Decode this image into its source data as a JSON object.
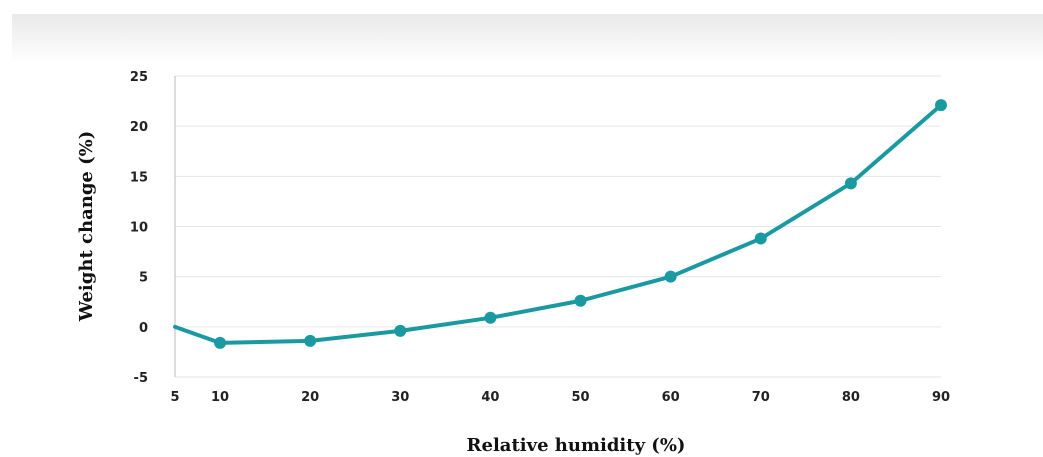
{
  "chart_data": {
    "type": "line",
    "title": "",
    "xlabel": "Relative humidity (%)",
    "ylabel": "Weight change (%)",
    "x_ticks": [
      "5",
      "10",
      "20",
      "30",
      "40",
      "50",
      "60",
      "70",
      "80",
      "90"
    ],
    "y_ticks": [
      "-5",
      "0",
      "5",
      "10",
      "15",
      "20",
      "25"
    ],
    "xlim": [
      5,
      90
    ],
    "ylim": [
      -5,
      25
    ],
    "grid": "horizontal",
    "legend": "none",
    "series": [
      {
        "color": "#1a9aa0",
        "x": [
          5,
          10,
          20,
          30,
          40,
          50,
          60,
          70,
          80,
          90
        ],
        "y": [
          0,
          -1.6,
          -1.4,
          -0.4,
          0.9,
          2.6,
          5.0,
          8.8,
          14.3,
          22.1
        ],
        "markers": [
          false,
          true,
          true,
          true,
          true,
          true,
          true,
          true,
          true,
          true
        ]
      }
    ]
  }
}
